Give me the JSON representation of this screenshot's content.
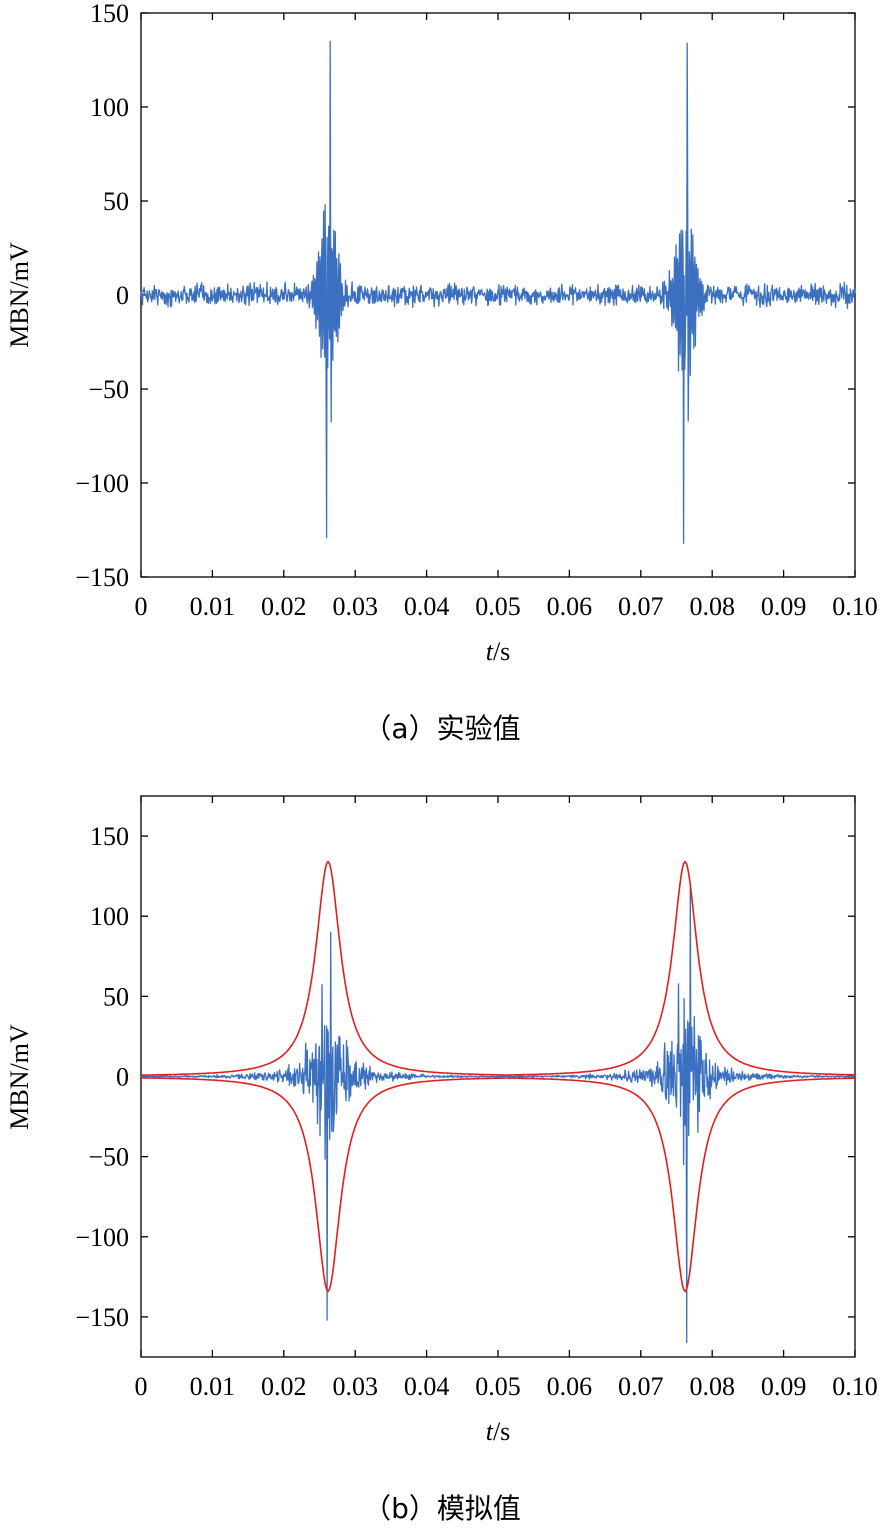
{
  "chart_data": [
    {
      "type": "line",
      "caption": "（a）实验值",
      "ylabel": "MBN/mV",
      "xlabel_var": "t",
      "xlabel_unit": "/s",
      "xlim": [
        0,
        0.1
      ],
      "ylim": [
        -150,
        150
      ],
      "xticks": [
        0,
        0.01,
        0.02,
        0.03,
        0.04,
        0.05,
        0.06,
        0.07,
        0.08,
        0.09,
        0.1
      ],
      "xtick_labels": [
        "0",
        "0.01",
        "0.02",
        "0.03",
        "0.04",
        "0.05",
        "0.06",
        "0.07",
        "0.08",
        "0.09",
        "0.10"
      ],
      "yticks": [
        -150,
        -100,
        -50,
        0,
        50,
        100,
        150
      ],
      "ytick_labels": [
        "−150",
        "−100",
        "−50",
        "0",
        "50",
        "100",
        "150"
      ],
      "grid": false,
      "series": [
        {
          "color": "#3b6fbf",
          "bursts": [
            {
              "center": 0.0262,
              "peak_max": 135,
              "peak_min": -129
            },
            {
              "center": 0.0762,
              "peak_max": 134,
              "peak_min": -132
            }
          ],
          "noise_amplitude": 8
        }
      ]
    },
    {
      "type": "line",
      "caption": "（b）模拟值",
      "ylabel": "MBN/mV",
      "xlabel_var": "t",
      "xlabel_unit": "/s",
      "xlim": [
        0,
        0.1
      ],
      "ylim": [
        -175,
        175
      ],
      "xticks": [
        0,
        0.01,
        0.02,
        0.03,
        0.04,
        0.05,
        0.06,
        0.07,
        0.08,
        0.09,
        0.1
      ],
      "xtick_labels": [
        "0",
        "0.01",
        "0.02",
        "0.03",
        "0.04",
        "0.05",
        "0.06",
        "0.07",
        "0.08",
        "0.09",
        "0.10"
      ],
      "yticks": [
        -150,
        -100,
        -50,
        0,
        50,
        100,
        150
      ],
      "ytick_labels": [
        "−150",
        "−100",
        "−50",
        "0",
        "50",
        "100",
        "150"
      ],
      "grid": false,
      "series": [
        {
          "color": "#3b6fbf",
          "bursts": [
            {
              "center": 0.0262,
              "peak_max": 90,
              "peak_min": -152
            },
            {
              "center": 0.0765,
              "peak_max": 118,
              "peak_min": -166
            }
          ]
        },
        {
          "color": "#e02020",
          "envelope": true,
          "centers": [
            0.0262,
            0.0762
          ],
          "peak": 134
        }
      ]
    }
  ]
}
